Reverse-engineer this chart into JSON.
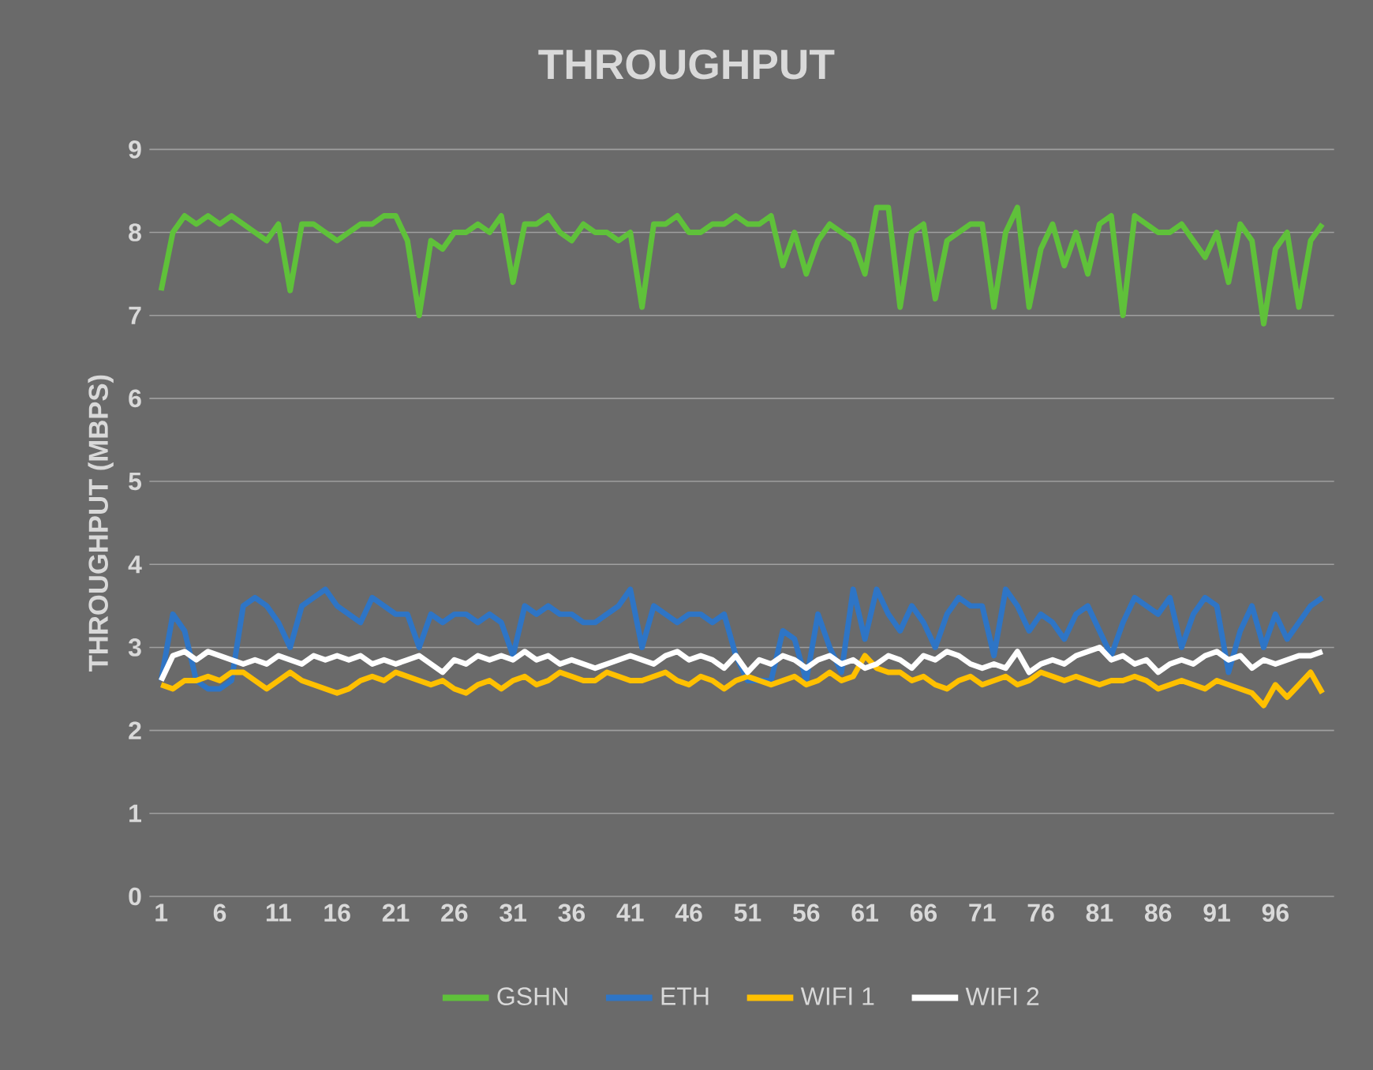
{
  "chart_data": {
    "type": "line",
    "title": "THROUGHPUT",
    "ylabel": "THROUGHPUT (MBPS)",
    "categories": [
      "1",
      null,
      null,
      null,
      null,
      "6",
      null,
      null,
      null,
      null,
      "11",
      null,
      null,
      null,
      null,
      "16",
      null,
      null,
      null,
      null,
      "21",
      null,
      null,
      null,
      null,
      "26",
      null,
      null,
      null,
      null,
      "31",
      null,
      null,
      null,
      null,
      "36",
      null,
      null,
      null,
      null,
      "41",
      null,
      null,
      null,
      null,
      "46",
      null,
      null,
      null,
      null,
      "51",
      null,
      null,
      null,
      null,
      "56",
      null,
      null,
      null,
      null,
      "61",
      null,
      null,
      null,
      null,
      "66",
      null,
      null,
      null,
      null,
      "71",
      null,
      null,
      null,
      null,
      "76",
      null,
      null,
      null,
      null,
      "81",
      null,
      null,
      null,
      null,
      "86",
      null,
      null,
      null,
      null,
      "91",
      null,
      null,
      null,
      null,
      "96",
      null,
      null,
      null,
      null
    ],
    "series": [
      {
        "name": "GSHN",
        "color": "#5fc13a",
        "values": [
          7.3,
          8.0,
          8.2,
          8.1,
          8.2,
          8.1,
          8.2,
          8.1,
          8.0,
          7.9,
          8.1,
          7.3,
          8.1,
          8.1,
          8.0,
          7.9,
          8.0,
          8.1,
          8.1,
          8.2,
          8.2,
          7.9,
          7.0,
          7.9,
          7.8,
          8.0,
          8.0,
          8.1,
          8.0,
          8.2,
          7.4,
          8.1,
          8.1,
          8.2,
          8.0,
          7.9,
          8.1,
          8.0,
          8.0,
          7.9,
          8.0,
          7.1,
          8.1,
          8.1,
          8.2,
          8.0,
          8.0,
          8.1,
          8.1,
          8.2,
          8.1,
          8.1,
          8.2,
          7.6,
          8.0,
          7.5,
          7.9,
          8.1,
          8.0,
          7.9,
          7.5,
          8.3,
          8.3,
          7.1,
          8.0,
          8.1,
          7.2,
          7.9,
          8.0,
          8.1,
          8.1,
          7.1,
          8.0,
          8.3,
          7.1,
          7.8,
          8.1,
          7.6,
          8.0,
          7.5,
          8.1,
          8.2,
          7.0,
          8.2,
          8.1,
          8.0,
          8.0,
          8.1,
          7.9,
          7.7,
          8.0,
          7.4,
          8.1,
          7.9,
          6.9,
          7.8,
          8.0,
          7.1,
          7.9,
          8.1
        ]
      },
      {
        "name": "ETH",
        "color": "#2e75c6",
        "values": [
          2.6,
          3.4,
          3.2,
          2.6,
          2.5,
          2.5,
          2.6,
          3.5,
          3.6,
          3.5,
          3.3,
          3.0,
          3.5,
          3.6,
          3.7,
          3.5,
          3.4,
          3.3,
          3.6,
          3.5,
          3.4,
          3.4,
          3.0,
          3.4,
          3.3,
          3.4,
          3.4,
          3.3,
          3.4,
          3.3,
          2.9,
          3.5,
          3.4,
          3.5,
          3.4,
          3.4,
          3.3,
          3.3,
          3.4,
          3.5,
          3.7,
          3.0,
          3.5,
          3.4,
          3.3,
          3.4,
          3.4,
          3.3,
          3.4,
          2.9,
          2.6,
          2.6,
          2.6,
          3.2,
          3.1,
          2.6,
          3.4,
          3.0,
          2.7,
          3.7,
          3.1,
          3.7,
          3.4,
          3.2,
          3.5,
          3.3,
          3.0,
          3.4,
          3.6,
          3.5,
          3.5,
          2.9,
          3.7,
          3.5,
          3.2,
          3.4,
          3.3,
          3.1,
          3.4,
          3.5,
          3.2,
          2.9,
          3.3,
          3.6,
          3.5,
          3.4,
          3.6,
          3.0,
          3.4,
          3.6,
          3.5,
          2.7,
          3.2,
          3.5,
          3.0,
          3.4,
          3.1,
          3.3,
          3.5,
          3.6
        ]
      },
      {
        "name": "WIFI 1",
        "color": "#ffc000",
        "values": [
          2.55,
          2.5,
          2.6,
          2.6,
          2.65,
          2.6,
          2.7,
          2.7,
          2.6,
          2.5,
          2.6,
          2.7,
          2.6,
          2.55,
          2.5,
          2.45,
          2.5,
          2.6,
          2.65,
          2.6,
          2.7,
          2.65,
          2.6,
          2.55,
          2.6,
          2.5,
          2.45,
          2.55,
          2.6,
          2.5,
          2.6,
          2.65,
          2.55,
          2.6,
          2.7,
          2.65,
          2.6,
          2.6,
          2.7,
          2.65,
          2.6,
          2.6,
          2.65,
          2.7,
          2.6,
          2.55,
          2.65,
          2.6,
          2.5,
          2.6,
          2.65,
          2.6,
          2.55,
          2.6,
          2.65,
          2.55,
          2.6,
          2.7,
          2.6,
          2.65,
          2.9,
          2.75,
          2.7,
          2.7,
          2.6,
          2.65,
          2.55,
          2.5,
          2.6,
          2.65,
          2.55,
          2.6,
          2.65,
          2.55,
          2.6,
          2.7,
          2.65,
          2.6,
          2.65,
          2.6,
          2.55,
          2.6,
          2.6,
          2.65,
          2.6,
          2.5,
          2.55,
          2.6,
          2.55,
          2.5,
          2.6,
          2.55,
          2.5,
          2.45,
          2.3,
          2.55,
          2.4,
          2.55,
          2.7,
          2.45
        ]
      },
      {
        "name": "WIFI 2",
        "color": "#ffffff",
        "values": [
          2.6,
          2.9,
          2.95,
          2.85,
          2.95,
          2.9,
          2.85,
          2.8,
          2.85,
          2.8,
          2.9,
          2.85,
          2.8,
          2.9,
          2.85,
          2.9,
          2.85,
          2.9,
          2.8,
          2.85,
          2.8,
          2.85,
          2.9,
          2.8,
          2.7,
          2.85,
          2.8,
          2.9,
          2.85,
          2.9,
          2.85,
          2.95,
          2.85,
          2.9,
          2.8,
          2.85,
          2.8,
          2.75,
          2.8,
          2.85,
          2.9,
          2.85,
          2.8,
          2.9,
          2.95,
          2.85,
          2.9,
          2.85,
          2.75,
          2.9,
          2.7,
          2.85,
          2.8,
          2.9,
          2.85,
          2.75,
          2.85,
          2.9,
          2.8,
          2.85,
          2.75,
          2.8,
          2.9,
          2.85,
          2.75,
          2.9,
          2.85,
          2.95,
          2.9,
          2.8,
          2.75,
          2.8,
          2.75,
          2.95,
          2.7,
          2.8,
          2.85,
          2.8,
          2.9,
          2.95,
          3.0,
          2.85,
          2.9,
          2.8,
          2.85,
          2.7,
          2.8,
          2.85,
          2.8,
          2.9,
          2.95,
          2.85,
          2.9,
          2.75,
          2.85,
          2.8,
          2.85,
          2.9,
          2.9,
          2.95
        ]
      }
    ],
    "ylim": [
      0,
      9
    ],
    "yticks": [
      0,
      1,
      2,
      3,
      4,
      5,
      6,
      7,
      8,
      9
    ],
    "grid": "y",
    "legend": "bottom",
    "marker": "none",
    "line_style": "solid"
  }
}
